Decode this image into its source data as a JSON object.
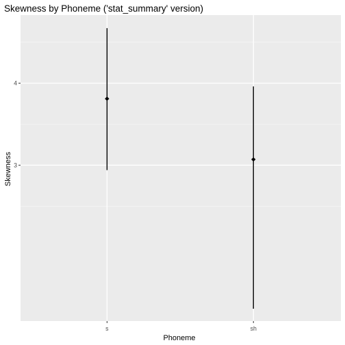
{
  "chart_data": {
    "type": "pointrange",
    "title": "Skewness by Phoneme ('stat_summary' version)",
    "xlabel": "Phoneme",
    "ylabel": "Skewness",
    "categories": [
      "s",
      "sh"
    ],
    "y_ticks": [
      3,
      4
    ],
    "ylim": [
      1.1,
      4.83
    ],
    "grid": true,
    "points": [
      {
        "category": "s",
        "mean": 3.81,
        "ymin": 2.94,
        "ymax": 4.67
      },
      {
        "category": "sh",
        "mean": 3.07,
        "ymin": 1.25,
        "ymax": 3.96
      }
    ],
    "colors": {
      "panel": "#ebebeb",
      "grid_major": "#ffffff",
      "grid_minor": "#f5f5f5",
      "mark": "#000000",
      "tick": "#333333"
    }
  }
}
